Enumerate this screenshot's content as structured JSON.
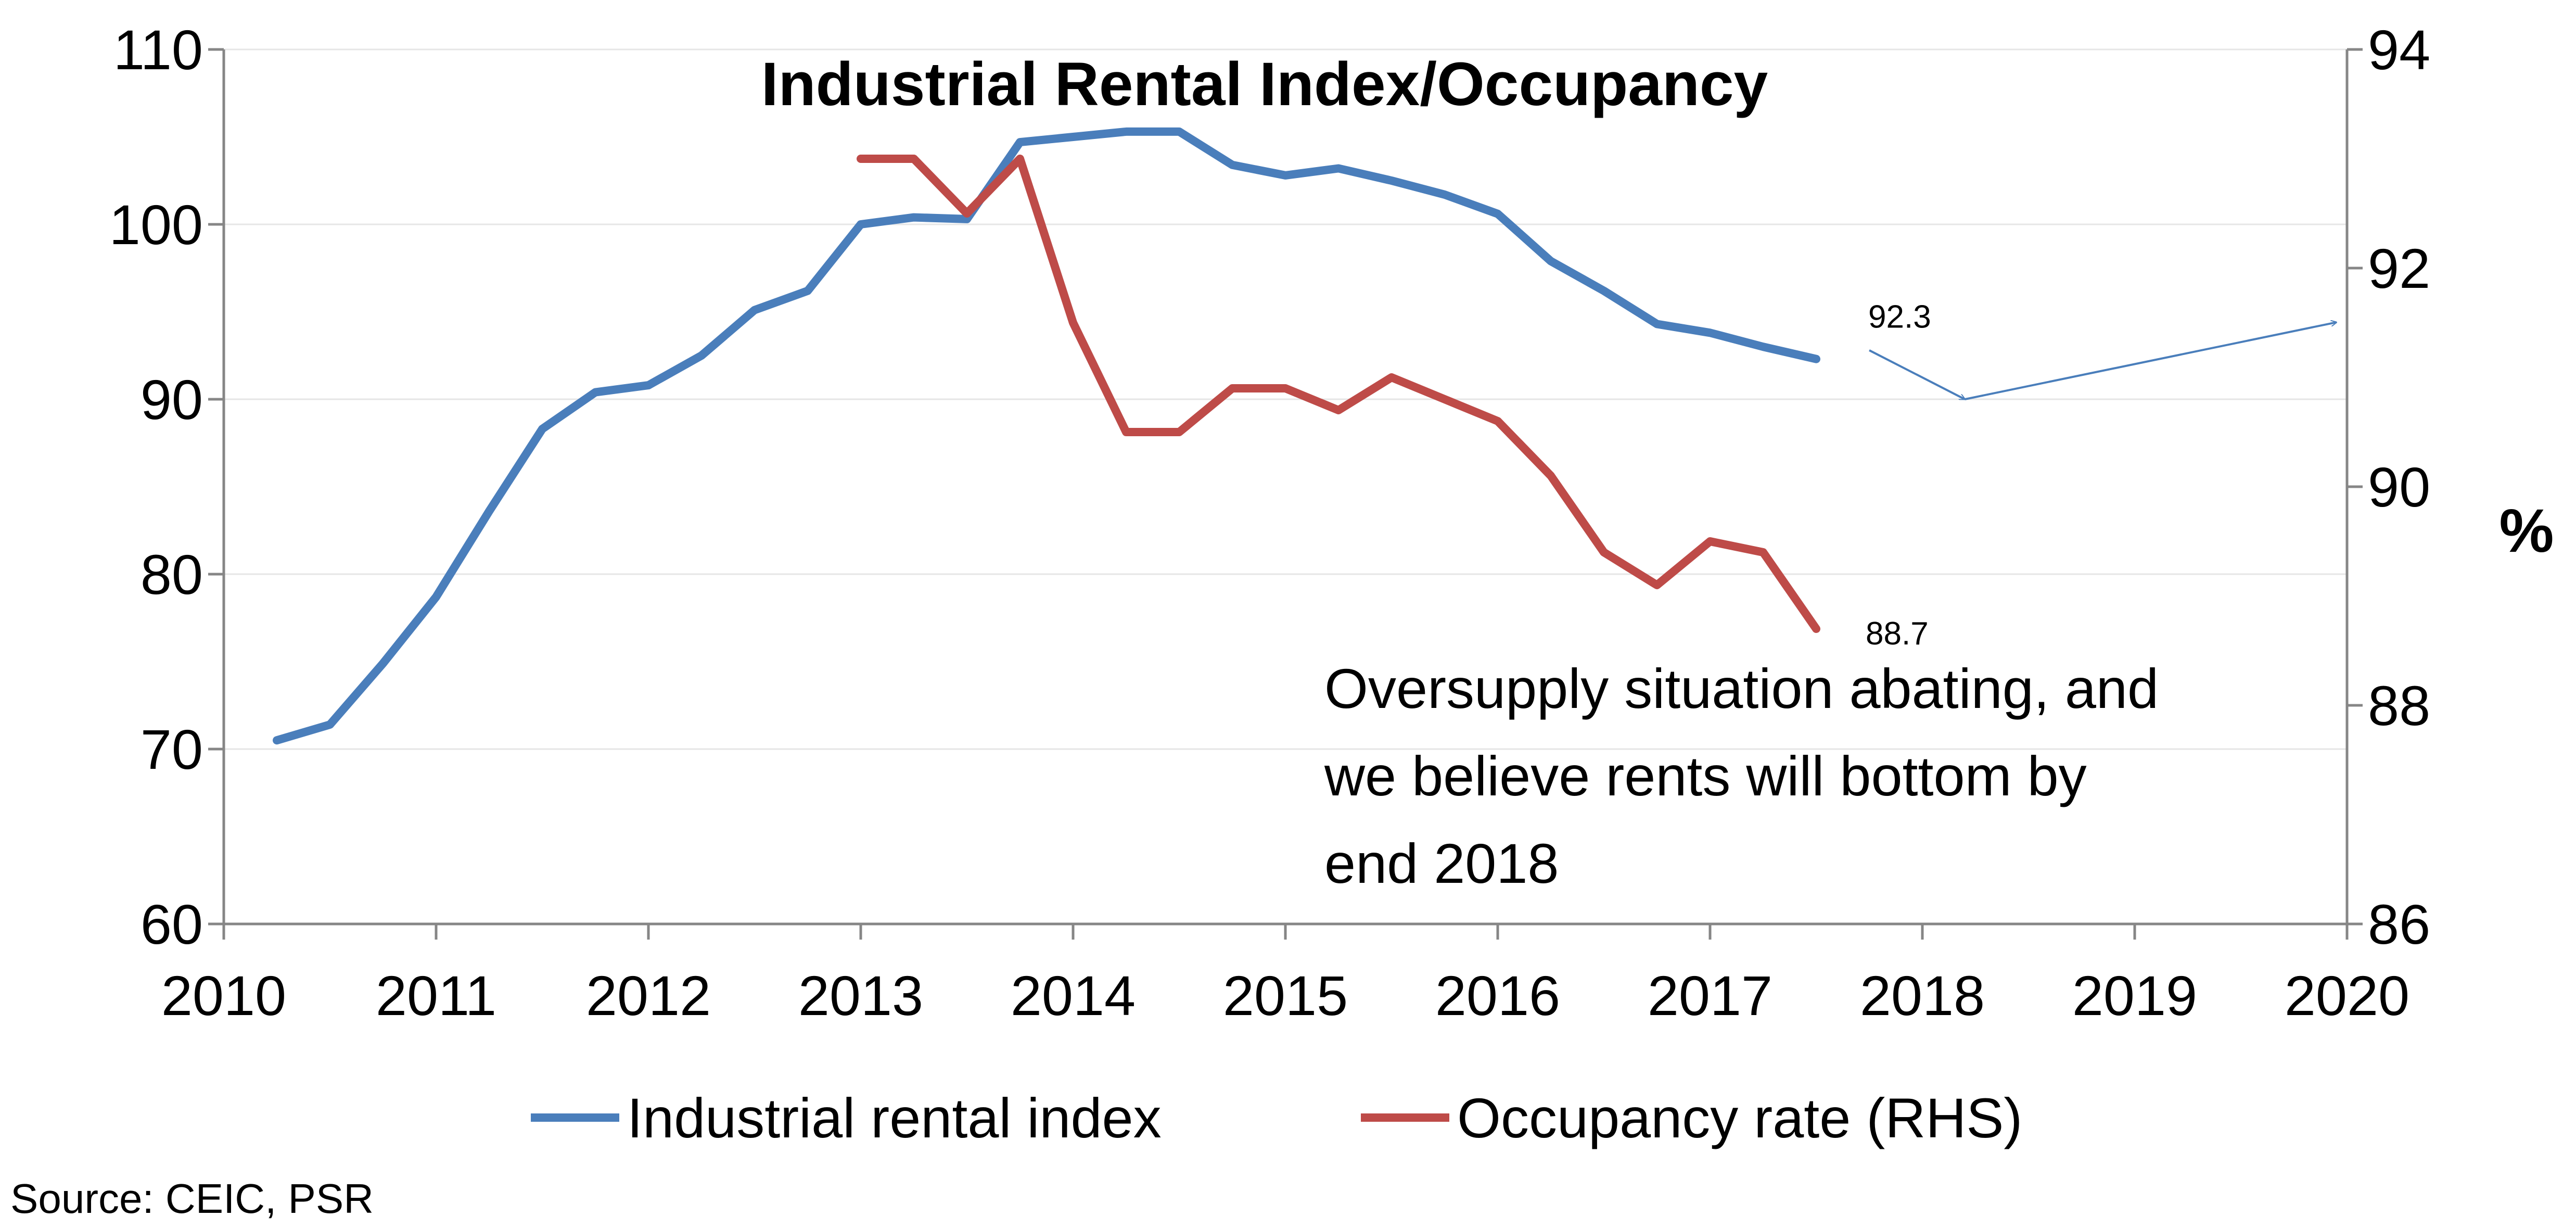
{
  "chart_data": {
    "type": "line",
    "title": "Industrial Rental Index/Occupancy",
    "ylim": [
      60,
      110
    ],
    "y_ticks": [
      "60",
      "70",
      "80",
      "90",
      "100",
      "110"
    ],
    "y2lim": [
      86,
      94
    ],
    "y2_ticks": [
      "86",
      "88",
      "90",
      "92",
      "94"
    ],
    "y2_unit": "%",
    "xlim": [
      2010,
      2020
    ],
    "x_ticks": [
      "2010",
      "2011",
      "2012",
      "2013",
      "2014",
      "2015",
      "2016",
      "2017",
      "2018",
      "2019",
      "2020"
    ],
    "grid": true,
    "legend_position": "bottom",
    "series": [
      {
        "name": "Industrial rental index",
        "axis": "left",
        "color": "#4a7ebb",
        "x": [
          2010.25,
          2010.5,
          2010.75,
          2011.0,
          2011.25,
          2011.5,
          2011.75,
          2012.0,
          2012.25,
          2012.5,
          2012.75,
          2013.0,
          2013.25,
          2013.5,
          2013.75,
          2014.0,
          2014.25,
          2014.5,
          2014.75,
          2015.0,
          2015.25,
          2015.5,
          2015.75,
          2016.0,
          2016.25,
          2016.5,
          2016.75,
          2017.0,
          2017.25,
          2017.5
        ],
        "values": [
          70.5,
          71.4,
          74.9,
          78.7,
          83.6,
          88.3,
          90.4,
          90.8,
          92.5,
          95.1,
          96.2,
          100.0,
          100.4,
          100.3,
          104.7,
          105.0,
          105.3,
          105.3,
          103.4,
          102.8,
          103.2,
          102.5,
          101.7,
          100.6,
          97.9,
          96.2,
          94.3,
          93.8,
          93.0,
          92.3
        ],
        "end_label": "92.3"
      },
      {
        "name": "Occupancy rate (RHS)",
        "axis": "right",
        "color": "#be4b48",
        "x": [
          2013.0,
          2013.25,
          2013.5,
          2013.75,
          2014.0,
          2014.25,
          2014.5,
          2014.75,
          2015.0,
          2015.25,
          2015.5,
          2015.75,
          2016.0,
          2016.25,
          2016.5,
          2016.75,
          2017.0,
          2017.25,
          2017.5
        ],
        "values": [
          93.0,
          93.0,
          92.5,
          93.0,
          91.5,
          90.5,
          90.5,
          90.9,
          90.9,
          90.7,
          91.0,
          90.8,
          90.6,
          90.1,
          89.4,
          89.1,
          89.5,
          89.4,
          88.7
        ],
        "end_label": "88.7"
      }
    ],
    "projection": {
      "color": "#4a7ebb",
      "points": [
        {
          "x": 2017.75,
          "y": 92.8
        },
        {
          "x": 2018.2,
          "y": 90.0
        },
        {
          "x": 2019.95,
          "y": 94.4
        }
      ]
    },
    "annotation": {
      "lines": [
        "Oversupply situation abating, and",
        "we believe rents will bottom by",
        "end 2018"
      ]
    },
    "source": "Source: CEIC, PSR"
  }
}
